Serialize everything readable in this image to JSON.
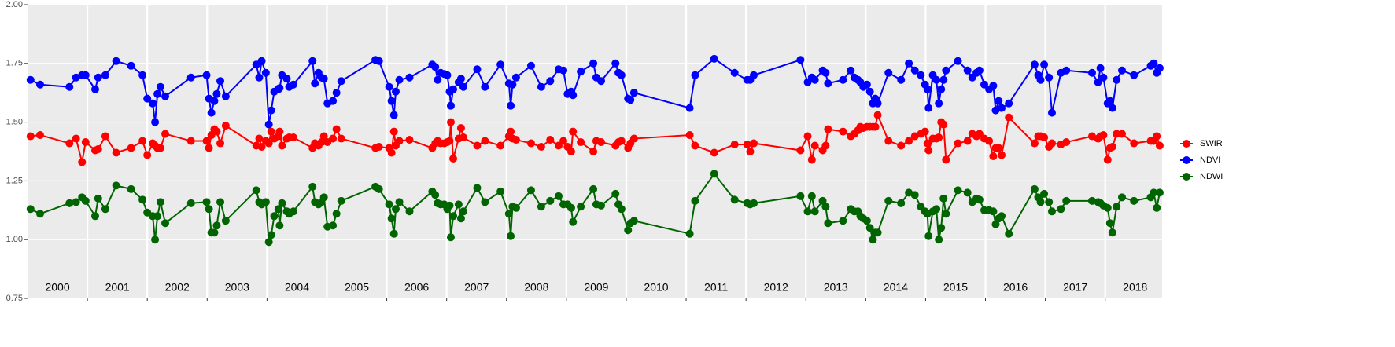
{
  "chart_data": {
    "type": "line",
    "x": [
      2000.05,
      2000.21,
      2000.7,
      2000.81,
      2000.91,
      2000.97,
      2001.13,
      2001.18,
      2001.3,
      2001.48,
      2001.73,
      2001.92,
      2002.0,
      2002.09,
      2002.13,
      2002.17,
      2002.22,
      2002.3,
      2002.73,
      2002.99,
      2003.03,
      2003.07,
      2003.12,
      2003.16,
      2003.22,
      2003.31,
      2003.82,
      2003.87,
      2003.91,
      2003.98,
      2004.03,
      2004.07,
      2004.12,
      2004.19,
      2004.21,
      2004.25,
      2004.33,
      2004.37,
      2004.44,
      2004.76,
      2004.8,
      2004.86,
      2004.91,
      2004.95,
      2005.01,
      2005.1,
      2005.16,
      2005.24,
      2005.81,
      2005.87,
      2006.04,
      2006.08,
      2006.12,
      2006.15,
      2006.21,
      2006.38,
      2006.76,
      2006.81,
      2006.85,
      2006.9,
      2006.96,
      2007.01,
      2007.05,
      2007.07,
      2007.11,
      2007.2,
      2007.24,
      2007.28,
      2007.51,
      2007.64,
      2007.9,
      2008.04,
      2008.07,
      2008.1,
      2008.16,
      2008.41,
      2008.58,
      2008.73,
      2008.87,
      2008.95,
      2009.02,
      2009.08,
      2009.11,
      2009.24,
      2009.45,
      2009.5,
      2009.58,
      2009.82,
      2009.87,
      2009.92,
      2010.03,
      2010.07,
      2010.13,
      2011.06,
      2011.15,
      2011.47,
      2011.81,
      2012.02,
      2012.07,
      2012.13,
      2012.91,
      2013.03,
      2013.1,
      2013.15,
      2013.28,
      2013.33,
      2013.37,
      2013.62,
      2013.75,
      2013.81,
      2013.87,
      2013.91,
      2013.96,
      2014.02,
      2014.07,
      2014.12,
      2014.16,
      2014.2,
      2014.38,
      2014.59,
      2014.72,
      2014.82,
      2014.92,
      2014.99,
      2015.03,
      2015.05,
      2015.12,
      2015.18,
      2015.22,
      2015.26,
      2015.3,
      2015.34,
      2015.54,
      2015.7,
      2015.78,
      2015.85,
      2015.9,
      2015.98,
      2016.06,
      2016.13,
      2016.17,
      2016.22,
      2016.27,
      2016.39,
      2016.82,
      2016.88,
      2016.92,
      2016.98,
      2017.06,
      2017.11,
      2017.26,
      2017.35,
      2017.78,
      2017.88,
      2017.92,
      2017.97,
      2018.04,
      2018.08,
      2018.12,
      2018.19,
      2018.28,
      2018.48,
      2018.76,
      2018.81,
      2018.86,
      2018.91
    ],
    "series": [
      {
        "name": "SWIR",
        "color": "#ff0000",
        "values": [
          1.44,
          1.445,
          1.41,
          1.43,
          1.33,
          1.415,
          1.38,
          1.385,
          1.44,
          1.37,
          1.39,
          1.42,
          1.36,
          1.41,
          1.4,
          1.39,
          1.39,
          1.45,
          1.42,
          1.42,
          1.39,
          1.445,
          1.47,
          1.46,
          1.41,
          1.485,
          1.4,
          1.43,
          1.395,
          1.42,
          1.41,
          1.46,
          1.43,
          1.44,
          1.46,
          1.4,
          1.43,
          1.435,
          1.435,
          1.39,
          1.41,
          1.4,
          1.415,
          1.44,
          1.415,
          1.43,
          1.47,
          1.43,
          1.39,
          1.395,
          1.39,
          1.37,
          1.46,
          1.4,
          1.42,
          1.425,
          1.39,
          1.41,
          1.42,
          1.41,
          1.41,
          1.415,
          1.42,
          1.5,
          1.345,
          1.43,
          1.475,
          1.435,
          1.4,
          1.42,
          1.4,
          1.44,
          1.46,
          1.43,
          1.425,
          1.41,
          1.395,
          1.425,
          1.4,
          1.42,
          1.395,
          1.375,
          1.46,
          1.415,
          1.375,
          1.42,
          1.415,
          1.4,
          1.415,
          1.42,
          1.39,
          1.41,
          1.43,
          1.445,
          1.4,
          1.37,
          1.405,
          1.405,
          1.375,
          1.41,
          1.38,
          1.44,
          1.34,
          1.4,
          1.38,
          1.4,
          1.47,
          1.46,
          1.44,
          1.45,
          1.465,
          1.48,
          1.475,
          1.48,
          1.48,
          1.48,
          1.48,
          1.53,
          1.42,
          1.4,
          1.42,
          1.44,
          1.45,
          1.46,
          1.41,
          1.38,
          1.43,
          1.43,
          1.435,
          1.5,
          1.49,
          1.34,
          1.41,
          1.42,
          1.45,
          1.44,
          1.45,
          1.43,
          1.42,
          1.355,
          1.39,
          1.39,
          1.36,
          1.52,
          1.41,
          1.44,
          1.44,
          1.435,
          1.395,
          1.41,
          1.405,
          1.415,
          1.44,
          1.43,
          1.44,
          1.445,
          1.34,
          1.39,
          1.395,
          1.45,
          1.45,
          1.41,
          1.42,
          1.42,
          1.44,
          1.4
        ]
      },
      {
        "name": "NDVI",
        "color": "#0000ff",
        "values": [
          1.68,
          1.66,
          1.65,
          1.69,
          1.7,
          1.7,
          1.64,
          1.69,
          1.7,
          1.76,
          1.74,
          1.7,
          1.6,
          1.58,
          1.5,
          1.62,
          1.65,
          1.61,
          1.69,
          1.7,
          1.6,
          1.54,
          1.59,
          1.62,
          1.675,
          1.61,
          1.745,
          1.69,
          1.76,
          1.71,
          1.49,
          1.55,
          1.63,
          1.64,
          1.645,
          1.7,
          1.685,
          1.65,
          1.66,
          1.76,
          1.665,
          1.71,
          1.69,
          1.685,
          1.58,
          1.59,
          1.625,
          1.675,
          1.765,
          1.76,
          1.65,
          1.59,
          1.53,
          1.63,
          1.68,
          1.69,
          1.745,
          1.735,
          1.68,
          1.71,
          1.705,
          1.7,
          1.63,
          1.57,
          1.64,
          1.67,
          1.685,
          1.65,
          1.725,
          1.65,
          1.745,
          1.665,
          1.57,
          1.66,
          1.69,
          1.74,
          1.65,
          1.675,
          1.725,
          1.72,
          1.62,
          1.63,
          1.615,
          1.715,
          1.75,
          1.69,
          1.675,
          1.75,
          1.71,
          1.7,
          1.6,
          1.595,
          1.625,
          1.56,
          1.7,
          1.77,
          1.71,
          1.68,
          1.68,
          1.7,
          1.765,
          1.67,
          1.69,
          1.68,
          1.72,
          1.71,
          1.665,
          1.68,
          1.72,
          1.69,
          1.68,
          1.67,
          1.65,
          1.66,
          1.63,
          1.58,
          1.6,
          1.58,
          1.71,
          1.68,
          1.75,
          1.72,
          1.7,
          1.66,
          1.64,
          1.56,
          1.7,
          1.68,
          1.58,
          1.64,
          1.68,
          1.72,
          1.76,
          1.72,
          1.69,
          1.71,
          1.72,
          1.66,
          1.64,
          1.655,
          1.55,
          1.59,
          1.56,
          1.58,
          1.745,
          1.7,
          1.68,
          1.745,
          1.69,
          1.54,
          1.71,
          1.72,
          1.71,
          1.67,
          1.73,
          1.69,
          1.58,
          1.59,
          1.56,
          1.68,
          1.72,
          1.7,
          1.74,
          1.75,
          1.71,
          1.73
        ]
      },
      {
        "name": "NDWI",
        "color": "#006400",
        "values": [
          1.13,
          1.11,
          1.155,
          1.16,
          1.18,
          1.165,
          1.1,
          1.175,
          1.13,
          1.23,
          1.215,
          1.17,
          1.115,
          1.1,
          1.0,
          1.1,
          1.16,
          1.07,
          1.155,
          1.16,
          1.13,
          1.03,
          1.03,
          1.06,
          1.16,
          1.08,
          1.21,
          1.16,
          1.15,
          1.16,
          0.99,
          1.02,
          1.1,
          1.13,
          1.06,
          1.155,
          1.12,
          1.11,
          1.12,
          1.225,
          1.16,
          1.15,
          1.16,
          1.18,
          1.055,
          1.06,
          1.11,
          1.165,
          1.225,
          1.215,
          1.15,
          1.09,
          1.025,
          1.13,
          1.16,
          1.12,
          1.205,
          1.19,
          1.155,
          1.15,
          1.15,
          1.13,
          1.145,
          1.01,
          1.1,
          1.15,
          1.09,
          1.12,
          1.22,
          1.16,
          1.205,
          1.11,
          1.015,
          1.14,
          1.135,
          1.21,
          1.14,
          1.165,
          1.185,
          1.15,
          1.15,
          1.135,
          1.075,
          1.14,
          1.215,
          1.15,
          1.145,
          1.195,
          1.15,
          1.13,
          1.04,
          1.07,
          1.08,
          1.025,
          1.165,
          1.28,
          1.17,
          1.155,
          1.15,
          1.155,
          1.185,
          1.12,
          1.185,
          1.12,
          1.165,
          1.14,
          1.07,
          1.08,
          1.13,
          1.12,
          1.12,
          1.1,
          1.09,
          1.08,
          1.05,
          1.0,
          1.03,
          1.03,
          1.165,
          1.155,
          1.2,
          1.19,
          1.14,
          1.12,
          1.11,
          1.015,
          1.12,
          1.13,
          1.0,
          1.05,
          1.175,
          1.11,
          1.21,
          1.2,
          1.16,
          1.175,
          1.17,
          1.125,
          1.125,
          1.12,
          1.065,
          1.09,
          1.1,
          1.025,
          1.215,
          1.18,
          1.16,
          1.195,
          1.16,
          1.12,
          1.13,
          1.165,
          1.165,
          1.16,
          1.155,
          1.145,
          1.135,
          1.07,
          1.03,
          1.14,
          1.18,
          1.165,
          1.18,
          1.2,
          1.135,
          1.2
        ]
      }
    ],
    "xlim": [
      2000,
      2018.95
    ],
    "xticks": [
      2001,
      2002,
      2003,
      2004,
      2005,
      2006,
      2007,
      2008,
      2009,
      2010,
      2011,
      2012,
      2013,
      2014,
      2015,
      2016,
      2017,
      2018
    ],
    "year_labels": [
      "2000",
      "2001",
      "2002",
      "2003",
      "2004",
      "2005",
      "2006",
      "2007",
      "2008",
      "2009",
      "2010",
      "2011",
      "2012",
      "2013",
      "2014",
      "2015",
      "2016",
      "2017",
      "2018"
    ],
    "ylim": [
      0.75,
      2.0
    ],
    "yticks": [
      0.75,
      {
        "value": 1,
        "label": "1.00"
      },
      1.25,
      {
        "value": 1.5,
        "label": "1.50"
      },
      1.75,
      {
        "value": 2,
        "label": "2.00"
      }
    ],
    "grid": true,
    "legend": "right"
  }
}
